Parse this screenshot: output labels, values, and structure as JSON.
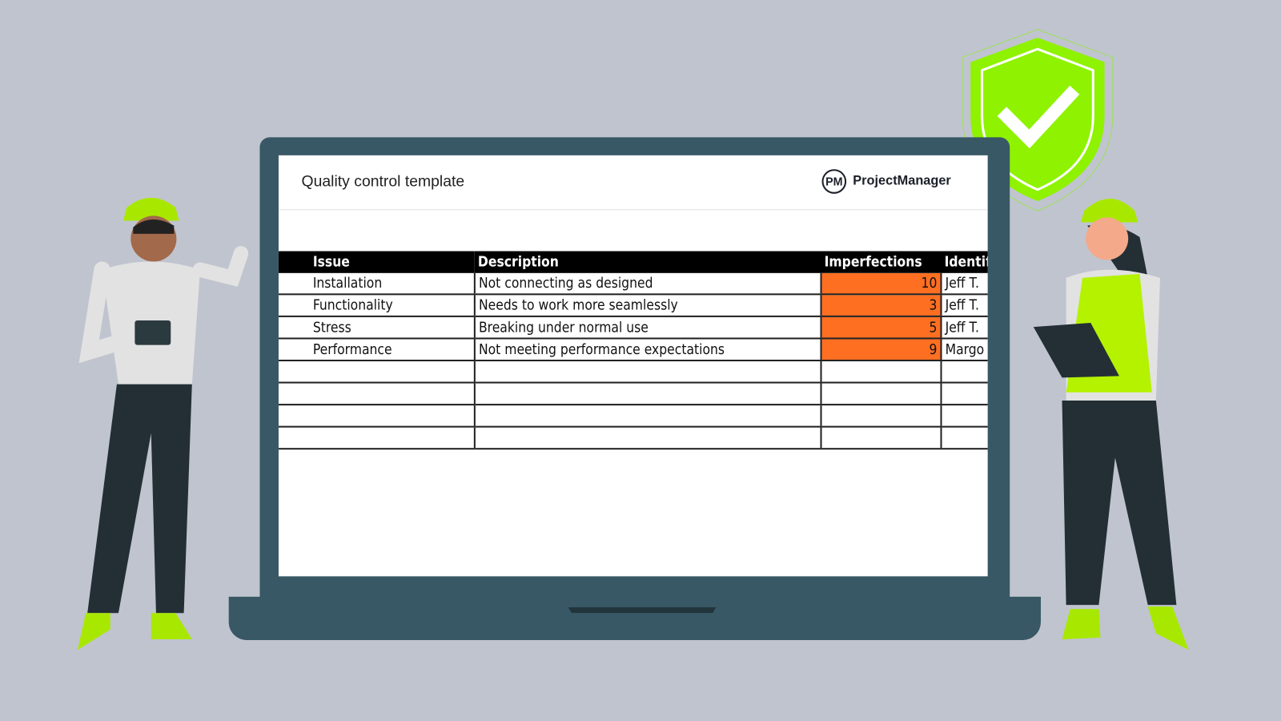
{
  "header": {
    "title": "Quality control template",
    "logo_mark": "PM",
    "logo_text": "ProjectManager"
  },
  "table": {
    "columns": [
      "Issue",
      "Description",
      "Imperfections",
      "Identif"
    ],
    "rows": [
      {
        "issue": "Installation",
        "description": "Not connecting as designed",
        "imperfections": "10",
        "identified": "Jeff T."
      },
      {
        "issue": "Functionality",
        "description": "Needs to work more seamlessly",
        "imperfections": "3",
        "identified": "Jeff T."
      },
      {
        "issue": "Stress",
        "description": "Breaking under normal use",
        "imperfections": "5",
        "identified": "Jeff T."
      },
      {
        "issue": "Performance",
        "description": "Not meeting performance expectations",
        "imperfections": "9",
        "identified": "Margo"
      }
    ],
    "empty_rows": 4
  },
  "colors": {
    "background": "#c0c4cf",
    "laptop": "#375864",
    "highlight": "#ff6f22",
    "accent_green": "#8ef200"
  },
  "icons": [
    "shield-check-icon",
    "worker-illustration"
  ]
}
